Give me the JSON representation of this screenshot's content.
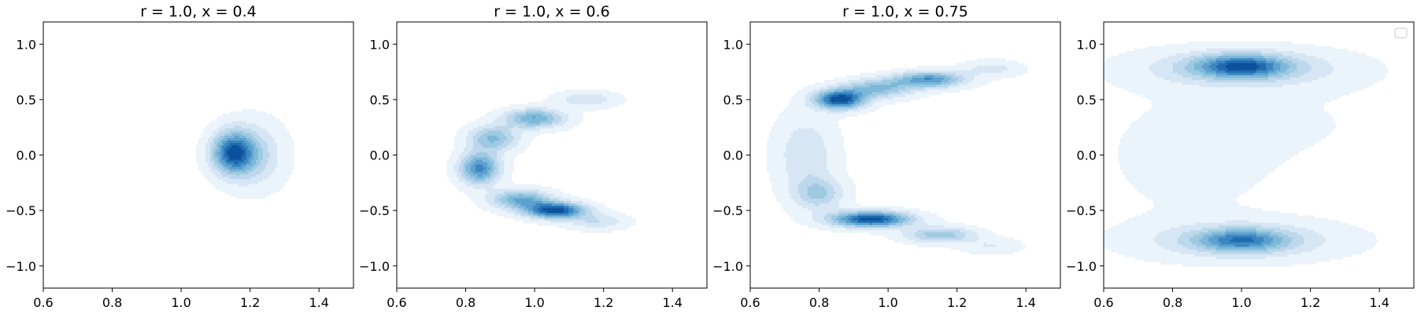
{
  "chart_data": [
    {
      "type": "kde-contour",
      "title": "r = 1.0, x = 0.4",
      "xlim": [
        0.6,
        1.5
      ],
      "ylim": [
        -1.2,
        1.2
      ],
      "xticks": [
        0.6,
        0.8,
        1.0,
        1.2,
        1.4
      ],
      "xtick_labels": [
        "0.6",
        "0.8",
        "1.0",
        "1.2",
        "1.4"
      ],
      "yticks": [
        1.0,
        0.5,
        0.0,
        -0.5,
        -1.0
      ],
      "ytick_labels": [
        "1.0",
        "0.5",
        "0.0",
        "−0.5",
        "−1.0"
      ],
      "grid": false,
      "colormap": "Blues",
      "density_components": [
        {
          "mx": 1.15,
          "my": 0.02,
          "sx": 0.042,
          "sy": 0.13,
          "w": 1.0
        },
        {
          "mx": 1.21,
          "my": 0.0,
          "sx": 0.06,
          "sy": 0.2,
          "w": 0.35
        }
      ]
    },
    {
      "type": "kde-contour",
      "title": "r = 1.0, x = 0.6",
      "xlim": [
        0.6,
        1.5
      ],
      "ylim": [
        -1.2,
        1.2
      ],
      "xticks": [
        0.6,
        0.8,
        1.0,
        1.2,
        1.4
      ],
      "xtick_labels": [
        "0.6",
        "0.8",
        "1.0",
        "1.2",
        "1.4"
      ],
      "yticks": [
        1.0,
        0.5,
        0.0,
        -0.5,
        -1.0
      ],
      "ytick_labels": [
        "1.0",
        "0.5",
        "0.0",
        "−0.5",
        "−1.0"
      ],
      "grid": false,
      "colormap": "Blues",
      "density_components": [
        {
          "mx": 1.06,
          "my": -0.5,
          "sx": 0.06,
          "sy": 0.05,
          "w": 1.0
        },
        {
          "mx": 0.96,
          "my": -0.4,
          "sx": 0.06,
          "sy": 0.06,
          "w": 0.6
        },
        {
          "mx": 0.84,
          "my": -0.12,
          "sx": 0.04,
          "sy": 0.1,
          "w": 0.75
        },
        {
          "mx": 0.88,
          "my": 0.15,
          "sx": 0.05,
          "sy": 0.08,
          "w": 0.5
        },
        {
          "mx": 1.0,
          "my": 0.33,
          "sx": 0.06,
          "sy": 0.06,
          "w": 0.6
        },
        {
          "mx": 1.15,
          "my": 0.5,
          "sx": 0.06,
          "sy": 0.05,
          "w": 0.25
        },
        {
          "mx": 1.18,
          "my": -0.6,
          "sx": 0.06,
          "sy": 0.05,
          "w": 0.25
        }
      ]
    },
    {
      "type": "kde-contour",
      "title": "r = 1.0, x = 0.75",
      "xlim": [
        0.6,
        1.5
      ],
      "ylim": [
        -1.2,
        1.2
      ],
      "xticks": [
        0.6,
        0.8,
        1.0,
        1.2,
        1.4
      ],
      "xtick_labels": [
        "0.6",
        "0.8",
        "1.0",
        "1.2",
        "1.4"
      ],
      "yticks": [
        1.0,
        0.5,
        0.0,
        -0.5,
        -1.0
      ],
      "ytick_labels": [
        "1.0",
        "0.5",
        "0.0",
        "−0.5",
        "−1.0"
      ],
      "grid": false,
      "colormap": "Blues",
      "density_components": [
        {
          "mx": 0.86,
          "my": 0.5,
          "sx": 0.05,
          "sy": 0.06,
          "w": 1.0
        },
        {
          "mx": 1.12,
          "my": 0.68,
          "sx": 0.07,
          "sy": 0.05,
          "w": 0.7
        },
        {
          "mx": 0.97,
          "my": 0.6,
          "sx": 0.07,
          "sy": 0.06,
          "w": 0.5
        },
        {
          "mx": 0.95,
          "my": -0.58,
          "sx": 0.08,
          "sy": 0.05,
          "w": 1.0
        },
        {
          "mx": 1.15,
          "my": -0.72,
          "sx": 0.07,
          "sy": 0.05,
          "w": 0.45
        },
        {
          "mx": 0.8,
          "my": -0.35,
          "sx": 0.05,
          "sy": 0.1,
          "w": 0.35
        },
        {
          "mx": 0.76,
          "my": 0.0,
          "sx": 0.06,
          "sy": 0.25,
          "w": 0.25
        },
        {
          "mx": 1.3,
          "my": 0.78,
          "sx": 0.06,
          "sy": 0.05,
          "w": 0.2
        },
        {
          "mx": 1.3,
          "my": -0.82,
          "sx": 0.06,
          "sy": 0.05,
          "w": 0.15
        }
      ]
    },
    {
      "type": "kde-contour",
      "title": "",
      "xlim": [
        0.6,
        1.5
      ],
      "ylim": [
        -1.2,
        1.2
      ],
      "xticks": [
        0.6,
        0.8,
        1.0,
        1.2,
        1.4
      ],
      "xtick_labels": [
        "0.6",
        "0.8",
        "1.0",
        "1.2",
        "1.4"
      ],
      "yticks": [
        1.0,
        0.5,
        0.0,
        -0.5,
        -1.0
      ],
      "ytick_labels": [
        "1.0",
        "0.5",
        "0.0",
        "−0.5",
        "−1.0"
      ],
      "grid": false,
      "colormap": "Blues",
      "legend": {
        "placement": "upper right",
        "entries": []
      },
      "density_components": [
        {
          "mx": 1.0,
          "my": 0.8,
          "sx": 0.09,
          "sy": 0.07,
          "w": 1.0
        },
        {
          "mx": 1.0,
          "my": 0.78,
          "sx": 0.2,
          "sy": 0.12,
          "w": 0.45
        },
        {
          "mx": 1.0,
          "my": -0.77,
          "sx": 0.09,
          "sy": 0.07,
          "w": 0.8
        },
        {
          "mx": 1.0,
          "my": -0.77,
          "sx": 0.2,
          "sy": 0.12,
          "w": 0.4
        },
        {
          "mx": 0.85,
          "my": 0.0,
          "sx": 0.2,
          "sy": 0.45,
          "w": 0.1
        },
        {
          "mx": 1.25,
          "my": 0.3,
          "sx": 0.2,
          "sy": 0.3,
          "w": 0.05
        }
      ]
    }
  ],
  "colors": {
    "levels": [
      "#f7fbff",
      "#ebf3fb",
      "#d6e6f4",
      "#bdd7ec",
      "#9ecae1",
      "#7db8da",
      "#5da1d0",
      "#3c87c1",
      "#1f6bb0",
      "#0c519b"
    ],
    "axis": "#000000"
  }
}
